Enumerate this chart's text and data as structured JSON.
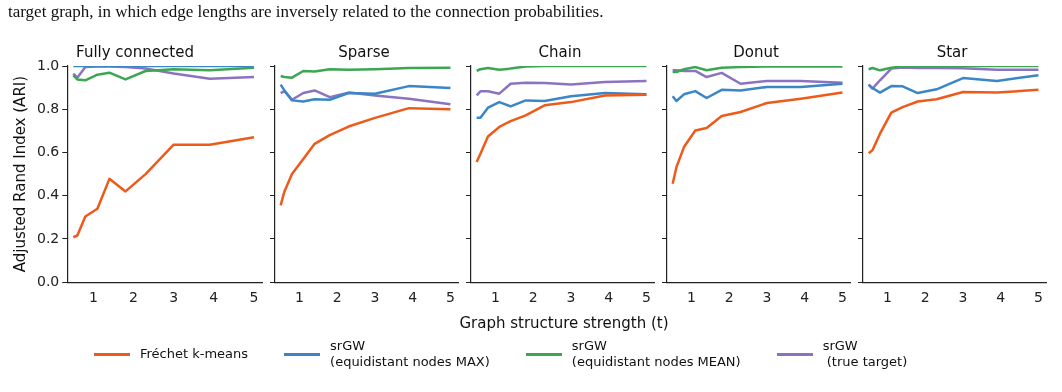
{
  "chart_data": [
    {
      "type": "line",
      "title": "Fully connected",
      "ylabel": "Adjusted Rand Index (ARI)",
      "annotations": [
        "target graph, in which edge lengths are inversely related to the connection probabilities."
      ],
      "legend": "bottom",
      "marker": "none",
      "x": [
        0.5,
        0.6,
        0.8,
        1.1,
        1.4,
        1.8,
        2.3,
        3,
        3.9,
        5
      ],
      "xlim": [
        0.35,
        5.2
      ],
      "xticks": [
        1,
        2,
        3,
        4,
        5
      ],
      "ylim": [
        0,
        1
      ],
      "yticks": [
        {
          "value": 0,
          "label": "0.0"
        },
        0.2,
        0.4,
        0.6,
        0.8,
        {
          "value": 1,
          "label": "1.0"
        }
      ],
      "series": [
        {
          "name": "Fréchet k-means",
          "color": "#ee5a1a",
          "values": [
            0.208,
            0.216,
            0.304,
            0.34,
            0.478,
            0.42,
            0.5,
            0.636,
            0.636,
            0.67
          ]
        },
        {
          "name": "srGW\n(equidistant nodes MAX)",
          "color": "#3a86c6",
          "values": [
            1,
            1,
            1,
            1,
            1,
            1,
            1,
            1,
            1,
            1
          ]
        },
        {
          "name": "srGW\n(equidistant nodes MEAN)",
          "color": "#3ca652",
          "values": [
            0.957,
            0.938,
            0.934,
            0.96,
            0.969,
            0.938,
            0.977,
            0.985,
            0.98,
            0.992
          ]
        },
        {
          "name": "srGW\n (true target)",
          "color": "#8b73c1",
          "values": [
            0.965,
            0.946,
            0.995,
            0.998,
            0.998,
            0.995,
            0.988,
            0.965,
            0.941,
            0.949
          ]
        }
      ]
    },
    {
      "type": "line",
      "title": "Sparse",
      "tick_labels": "x",
      "marker": "none",
      "x": [
        0.5,
        0.6,
        0.8,
        1.1,
        1.4,
        1.8,
        2.3,
        3,
        3.9,
        5
      ],
      "xlim": [
        0.35,
        5.2
      ],
      "xticks": [
        1,
        2,
        3,
        4,
        5
      ],
      "ylim": [
        0,
        1
      ],
      "yticks": [
        0,
        0.2,
        0.4,
        0.6,
        0.8,
        1
      ],
      "series": [
        {
          "color": "#ee5a1a",
          "values": [
            0.355,
            0.42,
            0.5,
            0.57,
            0.64,
            0.68,
            0.72,
            0.76,
            0.805,
            0.8
          ]
        },
        {
          "color": "#3a86c6",
          "values": [
            0.914,
            0.887,
            0.841,
            0.836,
            0.846,
            0.844,
            0.875,
            0.872,
            0.907,
            0.898
          ]
        },
        {
          "color": "#3ca652",
          "values": [
            0.954,
            0.949,
            0.946,
            0.977,
            0.975,
            0.985,
            0.983,
            0.985,
            0.991,
            0.992
          ]
        },
        {
          "color": "#8b73c1",
          "values": [
            0.875,
            0.884,
            0.844,
            0.875,
            0.887,
            0.856,
            0.877,
            0.864,
            0.849,
            0.823
          ]
        }
      ]
    },
    {
      "type": "line",
      "title": "Chain",
      "xlabel": "Graph structure strength (t)",
      "tick_labels": "x",
      "marker": "none",
      "x": [
        0.5,
        0.6,
        0.8,
        1.1,
        1.4,
        1.8,
        2.3,
        3,
        3.9,
        5
      ],
      "xlim": [
        0.35,
        5.2
      ],
      "xticks": [
        1,
        2,
        3,
        4,
        5
      ],
      "ylim": [
        0,
        1
      ],
      "yticks": [
        0,
        0.2,
        0.4,
        0.6,
        0.8,
        1
      ],
      "series": [
        {
          "color": "#ee5a1a",
          "values": [
            0.556,
            0.594,
            0.674,
            0.718,
            0.745,
            0.772,
            0.818,
            0.833,
            0.864,
            0.867
          ]
        },
        {
          "color": "#3a86c6",
          "values": [
            0.761,
            0.761,
            0.807,
            0.833,
            0.813,
            0.841,
            0.838,
            0.86,
            0.875,
            0.869
          ]
        },
        {
          "color": "#3ca652",
          "values": [
            0.977,
            0.985,
            0.991,
            0.983,
            0.988,
            0.998,
            1,
            1,
            1,
            1
          ]
        },
        {
          "color": "#8b73c1",
          "values": [
            0.864,
            0.883,
            0.883,
            0.872,
            0.918,
            0.923,
            0.921,
            0.914,
            0.926,
            0.931
          ]
        }
      ]
    },
    {
      "type": "line",
      "title": "Donut",
      "tick_labels": "x",
      "marker": "none",
      "x": [
        0.5,
        0.6,
        0.8,
        1.1,
        1.4,
        1.8,
        2.3,
        3,
        3.9,
        5
      ],
      "xlim": [
        0.35,
        5.2
      ],
      "xticks": [
        1,
        2,
        3,
        4,
        5
      ],
      "ylim": [
        0,
        1
      ],
      "yticks": [
        0,
        0.2,
        0.4,
        0.6,
        0.8,
        1
      ],
      "series": [
        {
          "color": "#ee5a1a",
          "values": [
            0.455,
            0.532,
            0.625,
            0.702,
            0.713,
            0.769,
            0.787,
            0.829,
            0.849,
            0.877
          ]
        },
        {
          "color": "#3a86c6",
          "values": [
            0.86,
            0.838,
            0.869,
            0.884,
            0.852,
            0.89,
            0.887,
            0.903,
            0.903,
            0.918
          ]
        },
        {
          "color": "#3ca652",
          "values": [
            0.972,
            0.972,
            0.985,
            0.995,
            0.98,
            0.992,
            0.995,
            0.998,
            0.998,
            0.998
          ]
        },
        {
          "color": "#8b73c1",
          "values": [
            0.98,
            0.98,
            0.977,
            0.977,
            0.949,
            0.968,
            0.918,
            0.931,
            0.931,
            0.923
          ]
        }
      ]
    },
    {
      "type": "line",
      "title": "Star",
      "tick_labels": "x",
      "marker": "none",
      "x": [
        0.5,
        0.6,
        0.8,
        1.1,
        1.4,
        1.8,
        2.3,
        3,
        3.9,
        5
      ],
      "xlim": [
        0.35,
        5.2
      ],
      "xticks": [
        1,
        2,
        3,
        4,
        5
      ],
      "ylim": [
        0,
        1
      ],
      "yticks": [
        0,
        0.2,
        0.4,
        0.6,
        0.8,
        1
      ],
      "series": [
        {
          "color": "#ee5a1a",
          "values": [
            0.597,
            0.61,
            0.687,
            0.784,
            0.81,
            0.836,
            0.846,
            0.88,
            0.877,
            0.89
          ]
        },
        {
          "color": "#3a86c6",
          "values": [
            0.914,
            0.898,
            0.877,
            0.907,
            0.906,
            0.875,
            0.892,
            0.944,
            0.931,
            0.957
          ]
        },
        {
          "color": "#3ca652",
          "values": [
            0.985,
            0.991,
            0.98,
            0.992,
            0.998,
            1,
            1,
            1,
            1,
            1
          ]
        },
        {
          "color": "#8b73c1",
          "values": [
            0.914,
            0.895,
            0.934,
            0.988,
            0.993,
            0.991,
            0.991,
            0.99,
            0.983,
            0.983
          ]
        }
      ]
    }
  ]
}
